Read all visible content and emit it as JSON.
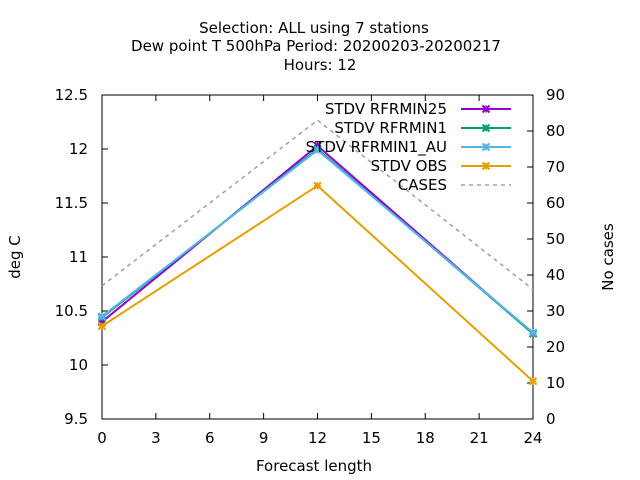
{
  "chart_data": {
    "type": "line",
    "title_lines": [
      "Selection: ALL using     7 stations",
      "Dew point T 500hPa   Period: 20200203-20200217",
      "Hours:  12"
    ],
    "xlabel": "Forecast length",
    "ylabel": "deg C",
    "y2label": "No cases",
    "x": [
      0,
      12,
      24
    ],
    "xlim": [
      0,
      24
    ],
    "xticks": [
      0,
      3,
      6,
      9,
      12,
      15,
      18,
      21,
      24
    ],
    "ylim": [
      9.5,
      12.5
    ],
    "yticks": [
      9.5,
      10,
      10.5,
      11,
      11.5,
      12,
      12.5
    ],
    "ytick_labels": [
      "9.5",
      "10",
      "10.5",
      "11",
      "11.5",
      "12",
      "12.5"
    ],
    "y2lim": [
      0,
      90
    ],
    "y2ticks": [
      0,
      10,
      20,
      30,
      40,
      50,
      60,
      70,
      80,
      90
    ],
    "grid": false,
    "legend_position": "top-right",
    "series": [
      {
        "name": "STDV RFRMIN25",
        "axis": "y",
        "values": [
          10.4,
          12.03,
          10.29
        ],
        "color": "#9400d3",
        "marker": "x"
      },
      {
        "name": "STDV RFRMIN1",
        "axis": "y",
        "values": [
          10.44,
          12.0,
          10.29
        ],
        "color": "#009e73",
        "marker": "x"
      },
      {
        "name": "STDV RFRMIN1_AU",
        "axis": "y",
        "values": [
          10.45,
          11.99,
          10.3
        ],
        "color": "#56b4e9",
        "marker": "x"
      },
      {
        "name": "STDV OBS",
        "axis": "y",
        "values": [
          10.36,
          11.66,
          9.85
        ],
        "color": "#e69f00",
        "marker": "x"
      },
      {
        "name": "CASES",
        "axis": "y2",
        "values": [
          37,
          83,
          36
        ],
        "color": "#a0a0a0",
        "marker": "none",
        "dashed": true
      }
    ]
  }
}
